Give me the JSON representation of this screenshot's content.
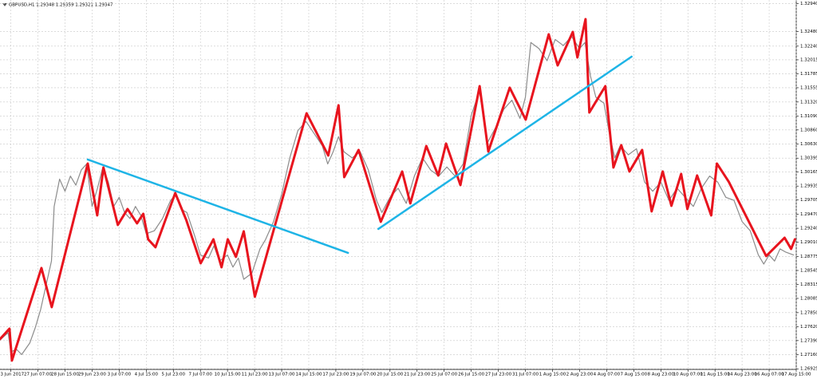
{
  "chart_data": {
    "type": "line",
    "title": "GBPUSD,H1  1.29348 1.29359 1.29321 1.29347",
    "xlim": [
      0,
      294
    ],
    "ylim": [
      1.26915,
      1.33
    ],
    "grid": true,
    "xticks": [
      {
        "value": 4,
        "label": "23 Jun 2017"
      },
      {
        "value": 14,
        "label": "27 Jun 07:00"
      },
      {
        "value": 24,
        "label": "28 Jun 15:00"
      },
      {
        "value": 34,
        "label": "29 Jun 23:00"
      },
      {
        "value": 44,
        "label": "3 Jul 07:00"
      },
      {
        "value": 54,
        "label": "4 Jul 15:00"
      },
      {
        "value": 64,
        "label": "5 Jul 23:00"
      },
      {
        "value": 74,
        "label": "7 Jul 07:00"
      },
      {
        "value": 84,
        "label": "10 Jul 15:00"
      },
      {
        "value": 94,
        "label": "11 Jul 23:00"
      },
      {
        "value": 104,
        "label": "13 Jul 07:00"
      },
      {
        "value": 114,
        "label": "14 Jul 15:00"
      },
      {
        "value": 124,
        "label": "17 Jul 23:00"
      },
      {
        "value": 134,
        "label": "19 Jul 07:00"
      },
      {
        "value": 144,
        "label": "20 Jul 15:00"
      },
      {
        "value": 154,
        "label": "21 Jul 23:00"
      },
      {
        "value": 164,
        "label": "25 Jul 07:00"
      },
      {
        "value": 174,
        "label": "26 Jul 15:00"
      },
      {
        "value": 184,
        "label": "27 Jul 23:00"
      },
      {
        "value": 194,
        "label": "31 Jul 07:00"
      },
      {
        "value": 204,
        "label": "1 Aug 15:00"
      },
      {
        "value": 214,
        "label": "2 Aug 23:00"
      },
      {
        "value": 224,
        "label": "4 Aug 07:00"
      },
      {
        "value": 234,
        "label": "7 Aug 15:00"
      },
      {
        "value": 244,
        "label": "8 Aug 23:00"
      },
      {
        "value": 254,
        "label": "10 Aug 07:00"
      },
      {
        "value": 264,
        "label": "11 Aug 15:00"
      },
      {
        "value": 274,
        "label": "14 Aug 23:00"
      },
      {
        "value": 284,
        "label": "16 Aug 07:00"
      },
      {
        "value": 294,
        "label": "17 Aug 15:00"
      }
    ],
    "yticks": [
      {
        "value": 1.3294,
        "label": "1.32940"
      },
      {
        "value": 1.3248,
        "label": "1.32480"
      },
      {
        "value": 1.3224,
        "label": "1.32240"
      },
      {
        "value": 1.32015,
        "label": "1.32015"
      },
      {
        "value": 1.31785,
        "label": "1.31785"
      },
      {
        "value": 1.31555,
        "label": "1.31555"
      },
      {
        "value": 1.3132,
        "label": "1.31320"
      },
      {
        "value": 1.3109,
        "label": "1.31090"
      },
      {
        "value": 1.3086,
        "label": "1.30860"
      },
      {
        "value": 1.3063,
        "label": "1.30630"
      },
      {
        "value": 1.30395,
        "label": "1.30395"
      },
      {
        "value": 1.30165,
        "label": "1.30165"
      },
      {
        "value": 1.29935,
        "label": "1.29935"
      },
      {
        "value": 1.29705,
        "label": "1.29705"
      },
      {
        "value": 1.2947,
        "label": "1.29470"
      },
      {
        "value": 1.2924,
        "label": "1.29240"
      },
      {
        "value": 1.2901,
        "label": "1.29010"
      },
      {
        "value": 1.28775,
        "label": "1.28775"
      },
      {
        "value": 1.28545,
        "label": "1.28545"
      },
      {
        "value": 1.28315,
        "label": "1.28315"
      },
      {
        "value": 1.28085,
        "label": "1.28085"
      },
      {
        "value": 1.2785,
        "label": "1.27850"
      },
      {
        "value": 1.2762,
        "label": "1.27620"
      },
      {
        "value": 1.2739,
        "label": "1.27390"
      },
      {
        "value": 1.2716,
        "label": "1.27160"
      },
      {
        "value": 1.26925,
        "label": "1.26925"
      }
    ],
    "series": [
      {
        "color": "#8c8c8c",
        "width": 1.2,
        "x": [
          0,
          3,
          4,
          6,
          8,
          11,
          13,
          15,
          17,
          19,
          20,
          22,
          24,
          26,
          28,
          30,
          32,
          34,
          36,
          38,
          40,
          42,
          44,
          46,
          48,
          50,
          52,
          54,
          57,
          60,
          63,
          65,
          67,
          69,
          72,
          74,
          77,
          79,
          81,
          84,
          86,
          88,
          90,
          93,
          96,
          98,
          101,
          104,
          107,
          110,
          113,
          116,
          119,
          121,
          123,
          125,
          127,
          130,
          133,
          136,
          139,
          141,
          144,
          147,
          150,
          153,
          156,
          159,
          162,
          165,
          168,
          171,
          174,
          177,
          180,
          183,
          186,
          189,
          192,
          194,
          196,
          199,
          202,
          205,
          208,
          211,
          214,
          216,
          218,
          220,
          223,
          225,
          227,
          229,
          232,
          235,
          238,
          241,
          244,
          247,
          250,
          253,
          256,
          259,
          262,
          265,
          268,
          271,
          274,
          277,
          280,
          282,
          284,
          286,
          288,
          290,
          293
        ],
        "values": [
          1.274,
          1.2752,
          1.272,
          1.2725,
          1.2716,
          1.2735,
          1.276,
          1.279,
          1.283,
          1.287,
          1.296,
          1.3005,
          1.2985,
          1.301,
          1.2995,
          1.302,
          1.303,
          1.296,
          1.299,
          1.3025,
          1.3,
          1.296,
          1.2975,
          1.295,
          1.294,
          1.296,
          1.2945,
          1.2915,
          1.292,
          1.294,
          1.297,
          1.298,
          1.2955,
          1.295,
          1.291,
          1.288,
          1.2875,
          1.2895,
          1.287,
          1.288,
          1.286,
          1.2875,
          1.284,
          1.285,
          1.289,
          1.2905,
          1.2935,
          1.298,
          1.304,
          1.3085,
          1.31,
          1.308,
          1.306,
          1.303,
          1.305,
          1.3075,
          1.305,
          1.304,
          1.305,
          1.302,
          1.297,
          1.295,
          1.2975,
          1.299,
          1.2965,
          1.301,
          1.304,
          1.302,
          1.301,
          1.3025,
          1.301,
          1.303,
          1.311,
          1.315,
          1.3065,
          1.309,
          1.312,
          1.3135,
          1.3105,
          1.314,
          1.323,
          1.322,
          1.32,
          1.3235,
          1.3225,
          1.324,
          1.322,
          1.323,
          1.3175,
          1.314,
          1.313,
          1.308,
          1.304,
          1.306,
          1.3045,
          1.3055,
          1.3,
          1.2985,
          1.3,
          1.297,
          1.299,
          1.2975,
          1.296,
          1.299,
          1.301,
          1.3,
          1.2975,
          1.297,
          1.2935,
          1.292,
          1.288,
          1.2865,
          1.288,
          1.287,
          1.289,
          1.2885,
          1.288
        ]
      },
      {
        "color": "#e8141e",
        "width": 3,
        "x": [
          0,
          3.5,
          4.4,
          15.3,
          19.1,
          32.4,
          35.9,
          38.2,
          43.5,
          47.1,
          50.6,
          52.9,
          54.7,
          57.4,
          64.7,
          68.8,
          74.1,
          78.8,
          81.8,
          84.1,
          87.1,
          90,
          94.1,
          113.2,
          121.2,
          125,
          127.1,
          132.4,
          140.6,
          148.5,
          151.5,
          157.4,
          161.8,
          164.7,
          170,
          177.1,
          180.3,
          188.2,
          194.1,
          202.6,
          205.9,
          211.5,
          213.2,
          216.2,
          217.6,
          223.5,
          226.5,
          229.4,
          232.4,
          237.1,
          240.6,
          244.7,
          247.9,
          251.5,
          253.8,
          257.4,
          262.6,
          264.7,
          269.1,
          282.9,
          289.7,
          292.1,
          293.5
        ],
        "values": [
          1.27415,
          1.27586,
          1.27061,
          1.28585,
          1.27941,
          1.30306,
          1.29452,
          1.30241,
          1.29295,
          1.29557,
          1.29321,
          1.29478,
          1.29058,
          1.28927,
          1.2982,
          1.29373,
          1.28664,
          1.29058,
          1.28598,
          1.29058,
          1.28769,
          1.29189,
          1.28112,
          1.31134,
          1.30438,
          1.31266,
          1.30083,
          1.3053,
          1.29347,
          1.30175,
          1.29649,
          1.30595,
          1.30109,
          1.30635,
          1.29952,
          1.31581,
          1.30503,
          1.31555,
          1.31029,
          1.32435,
          1.31923,
          1.32474,
          1.32054,
          1.32685,
          1.31147,
          1.31581,
          1.30241,
          1.30609,
          1.30175,
          1.3053,
          1.29518,
          1.30175,
          1.2961,
          1.30135,
          1.29557,
          1.30109,
          1.29452,
          1.30306,
          1.30004,
          1.28782,
          1.29084,
          1.289,
          1.29058
        ]
      },
      {
        "color": "#1eb4e6",
        "width": 2.5,
        "x": [
          32.4,
          128.5
        ],
        "values": [
          1.30372,
          1.28835
        ]
      },
      {
        "color": "#1eb4e6",
        "width": 2.5,
        "x": [
          139.7,
          233.2
        ],
        "values": [
          1.29229,
          1.32067
        ]
      }
    ]
  }
}
